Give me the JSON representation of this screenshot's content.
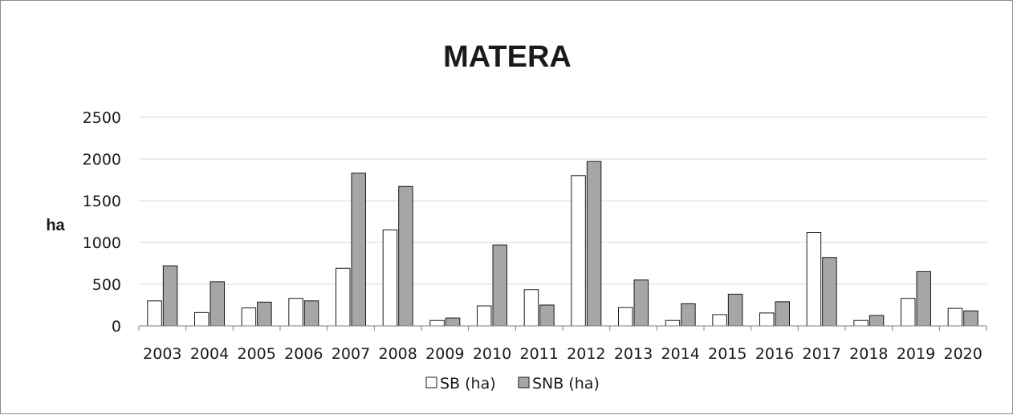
{
  "chart_data": {
    "type": "bar",
    "title": "MATERA",
    "xlabel": "",
    "ylabel": "ha",
    "ylim": [
      0,
      2500
    ],
    "yticks": [
      0,
      500,
      1000,
      1500,
      2000,
      2500
    ],
    "grid": true,
    "legend_position": "bottom",
    "categories": [
      "2003",
      "2004",
      "2005",
      "2006",
      "2007",
      "2008",
      "2009",
      "2010",
      "2011",
      "2012",
      "2013",
      "2014",
      "2015",
      "2016",
      "2017",
      "2018",
      "2019",
      "2020"
    ],
    "series": [
      {
        "name": "SB (ha)",
        "color": "#ffffff",
        "values": [
          300,
          160,
          215,
          330,
          690,
          1150,
          65,
          240,
          435,
          1800,
          220,
          65,
          135,
          155,
          1120,
          65,
          330,
          210
        ]
      },
      {
        "name": "SNB (ha)",
        "color": "#a6a6a6",
        "values": [
          720,
          530,
          285,
          300,
          1830,
          1670,
          95,
          970,
          250,
          1970,
          550,
          265,
          380,
          290,
          820,
          125,
          650,
          180
        ]
      }
    ]
  }
}
